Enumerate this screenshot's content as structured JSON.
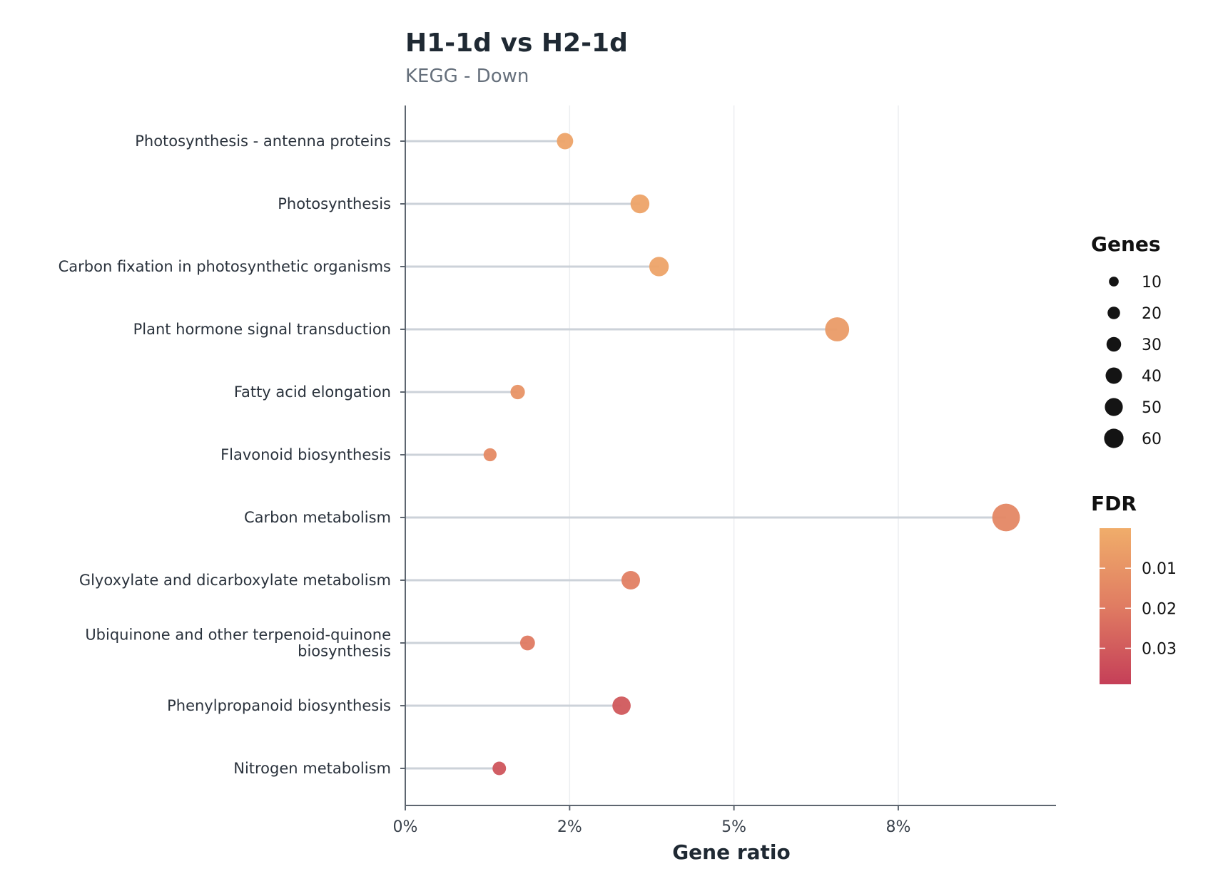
{
  "chart_data": {
    "type": "lollipop",
    "title": "H1-1d vs H2-1d",
    "subtitle": "KEGG - Down",
    "xlabel": "Gene ratio",
    "xlim": [
      0,
      0.099
    ],
    "x_ticks": [
      0,
      0.025,
      0.05,
      0.075
    ],
    "x_tick_labels": [
      "0%",
      "2%",
      "5%",
      "8%"
    ],
    "grid": "vertical",
    "categories": [
      [
        "Photosynthesis - antenna proteins"
      ],
      [
        "Photosynthesis"
      ],
      [
        "Carbon fixation in photosynthetic organisms"
      ],
      [
        "Plant hormone signal transduction"
      ],
      [
        "Fatty acid elongation"
      ],
      [
        "Flavonoid biosynthesis"
      ],
      [
        "Carbon metabolism"
      ],
      [
        "Glyoxylate and dicarboxylate metabolism"
      ],
      [
        "Ubiquinone and other terpenoid-quinone",
        "biosynthesis"
      ],
      [
        "Phenylpropanoid biosynthesis"
      ],
      [
        "Nitrogen metabolism"
      ]
    ],
    "gene_ratio": [
      0.0243,
      0.0357,
      0.0386,
      0.0657,
      0.0171,
      0.0129,
      0.0914,
      0.0343,
      0.0186,
      0.0329,
      0.0143
    ],
    "genes": [
      17,
      25,
      27,
      46,
      12,
      9,
      64,
      24,
      13,
      23,
      10
    ],
    "fdr": [
      0.004,
      0.004,
      0.004,
      0.007,
      0.01,
      0.014,
      0.015,
      0.018,
      0.02,
      0.031,
      0.032
    ],
    "legend_size": {
      "title": "Genes",
      "values": [
        10,
        20,
        30,
        40,
        50,
        60
      ],
      "labels": [
        "10",
        "20",
        "30",
        "40",
        "50",
        "60"
      ]
    },
    "legend_color": {
      "title": "FDR",
      "range": [
        0.0,
        0.039
      ],
      "ticks": [
        0.01,
        0.02,
        0.03
      ],
      "tick_labels": [
        "0.01",
        "0.02",
        "0.03"
      ],
      "low_color": "#f0ad6a",
      "high_color": "#c53f58"
    },
    "line_color": "#ccd2d9",
    "axis_color": "#5e6670"
  }
}
